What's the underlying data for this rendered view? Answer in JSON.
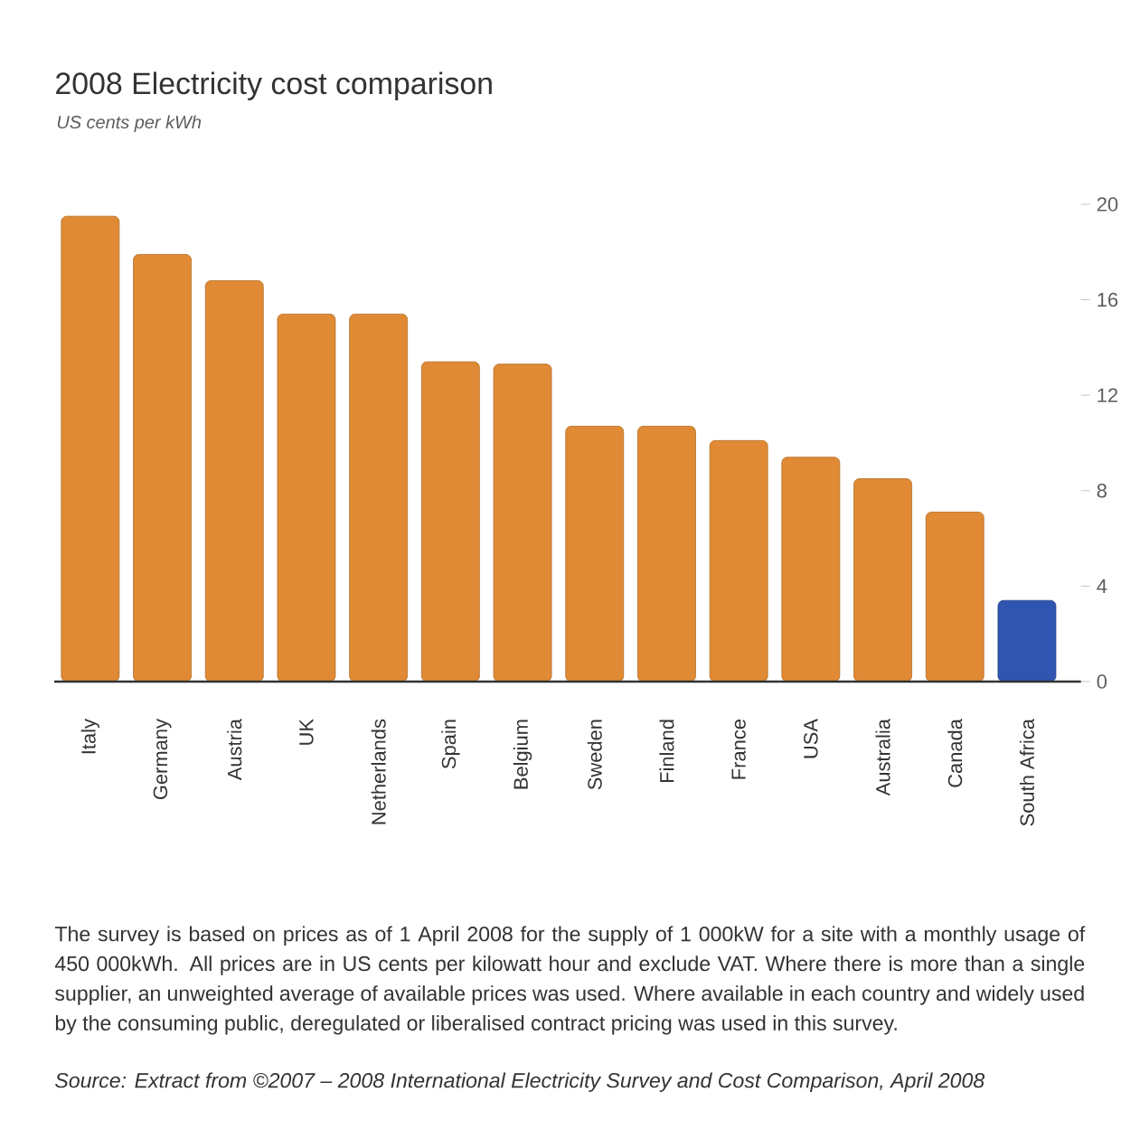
{
  "chart_data": {
    "type": "bar",
    "title": "2008 Electricity cost comparison",
    "subtitle": "US cents per kWh",
    "categories": [
      "Italy",
      "Germany",
      "Austria",
      "UK",
      "Netherlands",
      "Spain",
      "Belgium",
      "Sweden",
      "Finland",
      "France",
      "USA",
      "Australia",
      "Canada",
      "South Africa"
    ],
    "values": [
      19.5,
      17.9,
      16.8,
      15.4,
      15.4,
      13.4,
      13.3,
      10.7,
      10.7,
      10.1,
      9.4,
      8.5,
      7.1,
      3.4
    ],
    "colors": [
      "#e08a35",
      "#e08a35",
      "#e08a35",
      "#e08a35",
      "#e08a35",
      "#e08a35",
      "#e08a35",
      "#e08a35",
      "#e08a35",
      "#e08a35",
      "#e08a35",
      "#e08a35",
      "#e08a35",
      "#2f55b0"
    ],
    "ylim": [
      0,
      20
    ],
    "yticks": [
      0,
      4,
      8,
      12,
      16,
      20
    ],
    "grid": false,
    "annotations": [
      "The survey is based on prices as of 1 April 2008 for the supply of 1 000kW for a site with a monthly usage of 450 000kWh.  All prices are in US cents per kilowatt hour and exclude VAT.  Where there is more than a single supplier, an unweighted average of available prices was used.  Where available in each country and widely used by the consuming public, deregulated or liberalised contract pricing was used in this survey.",
      "Source: Extract from ©2007 – 2008 International Electricity Survey and Cost Comparison, April 2008"
    ]
  }
}
